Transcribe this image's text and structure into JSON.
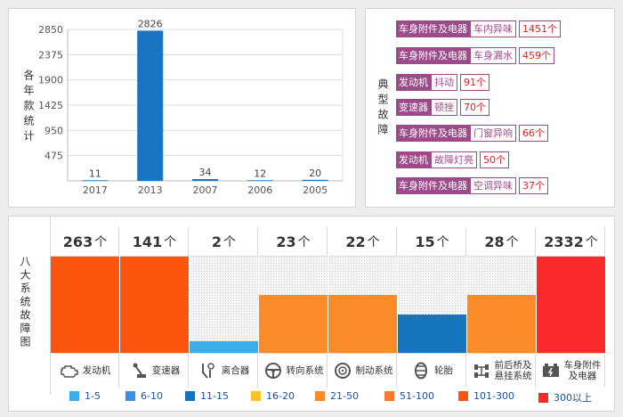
{
  "top_chart": {
    "side_label": "各年款统计",
    "chart_data": {
      "type": "bar",
      "categories": [
        "2017",
        "2013",
        "2007",
        "2006",
        "2005"
      ],
      "values": [
        11,
        2826,
        34,
        12,
        20
      ],
      "ylim": [
        0,
        2850
      ],
      "yticks": [
        475,
        950,
        1425,
        1900,
        2375,
        2850
      ],
      "grid": true,
      "bar_color": "#1a74c0"
    }
  },
  "typical": {
    "side_label": "典型故障",
    "items": [
      {
        "category": "车身附件及电器",
        "name": "车内异味",
        "count": "1451个"
      },
      {
        "category": "车身附件及电器",
        "name": "车身漏水",
        "count": "459个"
      },
      {
        "category": "发动机",
        "name": "抖动",
        "count": "91个"
      },
      {
        "category": "变速器",
        "name": "顿挫",
        "count": "70个"
      },
      {
        "category": "车身附件及电器",
        "name": "门窗异响",
        "count": "66个"
      },
      {
        "category": "发动机",
        "name": "故障灯亮",
        "count": "50个"
      },
      {
        "category": "车身附件及电器",
        "name": "空调异味",
        "count": "37个"
      }
    ]
  },
  "fault_map": {
    "side_label": "八大系统故障图",
    "unit": "个",
    "columns": [
      {
        "value": "263",
        "label": "发动机",
        "icon": "engine-icon",
        "fill": 1.0,
        "color": "#fb5510"
      },
      {
        "value": "141",
        "label": "变速器",
        "icon": "gear-shift-icon",
        "fill": 1.0,
        "color": "#fb5510"
      },
      {
        "value": "2",
        "label": "离合器",
        "icon": "clutch-icon",
        "fill": 0.12,
        "color": "#3aaeea"
      },
      {
        "value": "23",
        "label": "转向系统",
        "icon": "steering-wheel-icon",
        "fill": 0.6,
        "color": "#fa8b28"
      },
      {
        "value": "22",
        "label": "制动系统",
        "icon": "brake-disc-icon",
        "fill": 0.6,
        "color": "#fa8b28"
      },
      {
        "value": "15",
        "label": "轮胎",
        "icon": "tire-icon",
        "fill": 0.4,
        "color": "#1576be"
      },
      {
        "value": "28",
        "label": "前后桥及悬挂系统",
        "icon": "suspension-icon",
        "fill": 0.6,
        "color": "#fa8b28"
      },
      {
        "value": "2332",
        "label": "车身附件及电器",
        "icon": "battery-icon",
        "fill": 1.0,
        "color": "#f7292b"
      }
    ]
  },
  "legend": [
    {
      "label": "1-5",
      "color": "#3aaeea"
    },
    {
      "label": "6-10",
      "color": "#3a8fe8"
    },
    {
      "label": "11-15",
      "color": "#1576be"
    },
    {
      "label": "16-20",
      "color": "#f7c424"
    },
    {
      "label": "21-50",
      "color": "#fa8b28"
    },
    {
      "label": "51-100",
      "color": "#f77a2c"
    },
    {
      "label": "101-300",
      "color": "#fb5510"
    },
    {
      "label": "300以上",
      "color": "#f7292b"
    }
  ]
}
